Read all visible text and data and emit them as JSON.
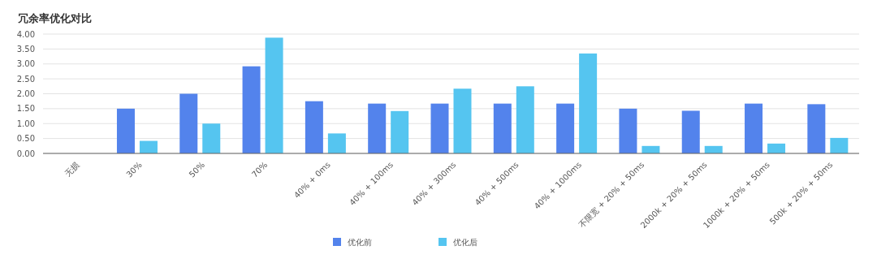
{
  "chart_data": {
    "type": "bar",
    "title": "冗余率优化对比",
    "categories": [
      "无损",
      "30%",
      "50%",
      "70%",
      "40% + 0ms",
      "40% + 100ms",
      "40% + 300ms",
      "40% + 500ms",
      "40% + 1000ms",
      "不限宽 + 20% + 50ms",
      "2000k + 20% + 50ms",
      "1000k + 20% + 50ms",
      "500k + 20% + 50ms"
    ],
    "series": [
      {
        "name": "优化前",
        "color": "#5383ec",
        "values": [
          0,
          1.5,
          2.0,
          2.92,
          1.75,
          1.67,
          1.67,
          1.67,
          1.67,
          1.5,
          1.43,
          1.67,
          1.65
        ]
      },
      {
        "name": "优化后",
        "color": "#55c5f0",
        "values": [
          0,
          0.42,
          1.0,
          3.88,
          0.67,
          1.42,
          2.17,
          2.25,
          3.35,
          0.25,
          0.25,
          0.33,
          0.52
        ]
      }
    ],
    "ylim": [
      0,
      4
    ],
    "yticks": [
      {
        "value": 0,
        "label": "0.00"
      },
      {
        "value": 0.5,
        "label": "0.50"
      },
      {
        "value": 1,
        "label": "1.00"
      },
      {
        "value": 1.5,
        "label": "1.50"
      },
      {
        "value": 2,
        "label": "2.00"
      },
      {
        "value": 2.5,
        "label": "2.50"
      },
      {
        "value": 3,
        "label": "3.00"
      },
      {
        "value": 3.5,
        "label": "3.50"
      },
      {
        "value": 4,
        "label": "4.00"
      }
    ],
    "grid": "y",
    "legend": "bottom"
  }
}
